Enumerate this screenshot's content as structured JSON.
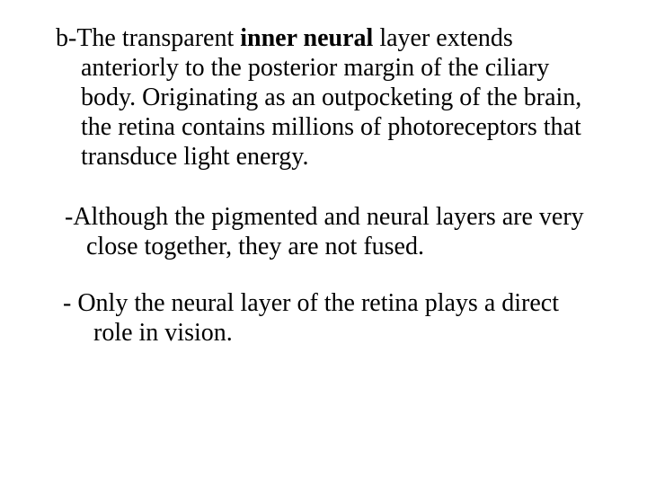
{
  "slide": {
    "background_color": "#ffffff",
    "text_color": "#000000",
    "font_family": "Times New Roman",
    "font_size_pt": 21,
    "paragraphs": {
      "p1_a": "b-The transparent ",
      "p1_bold": "inner neural ",
      "p1_b": "layer extends anteriorly to the posterior margin of the ciliary body. Originating as an outpocketing of the brain, the retina contains millions of photoreceptors that transduce light energy.",
      "p2": "-Although the pigmented and neural layers are very close together, they are not fused.",
      "p3": "- Only the neural layer of the retina plays a direct role in vision."
    }
  }
}
